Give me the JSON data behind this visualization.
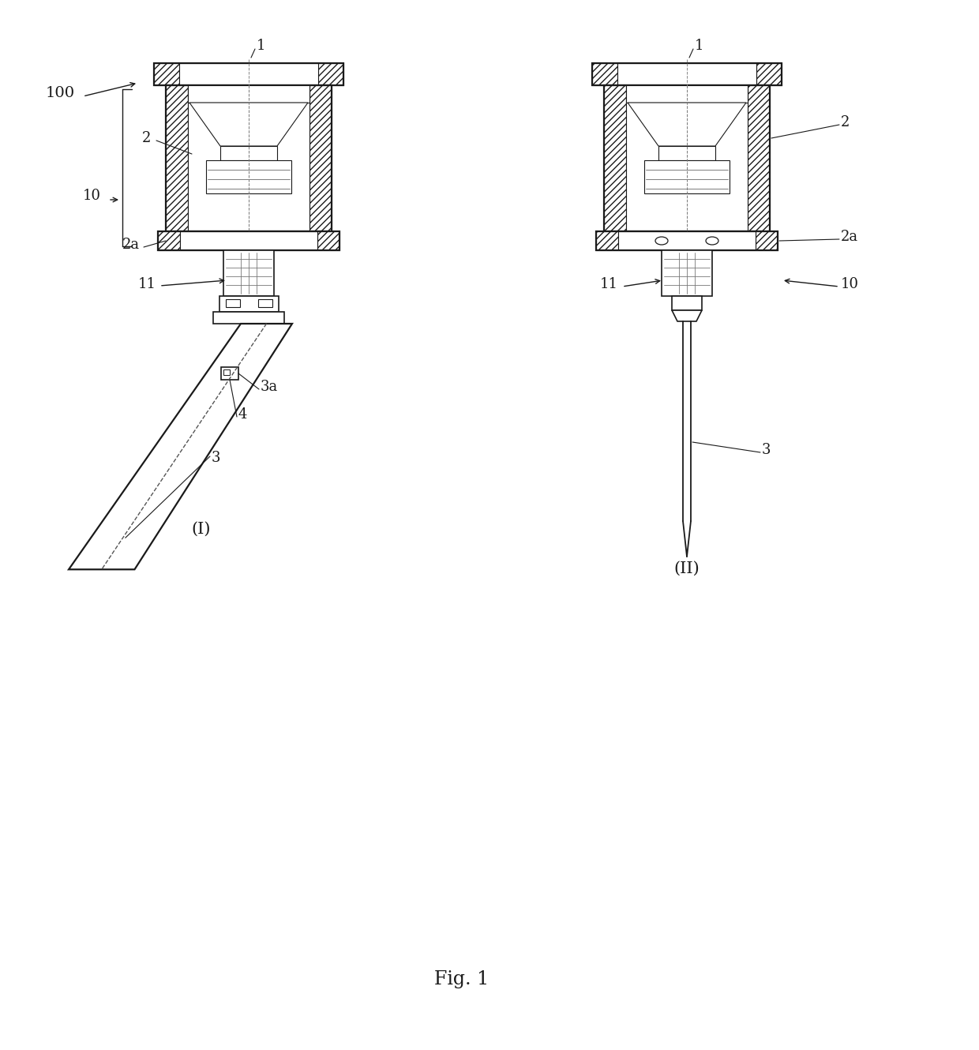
{
  "background_color": "#ffffff",
  "line_color": "#1a1a1a",
  "title": "Fig. 1",
  "fig_label_I": "(I)",
  "fig_label_II": "(II)",
  "label_100": "100",
  "label_1": "1",
  "label_2": "2",
  "label_2a": "2a",
  "label_10": "10",
  "label_11": "11",
  "label_3": "3",
  "label_3a": "3a",
  "label_4": "4",
  "fontsize_labels": 13,
  "fontsize_title": 17,
  "figsize": [
    12.4,
    13.3
  ],
  "dpi": 100
}
